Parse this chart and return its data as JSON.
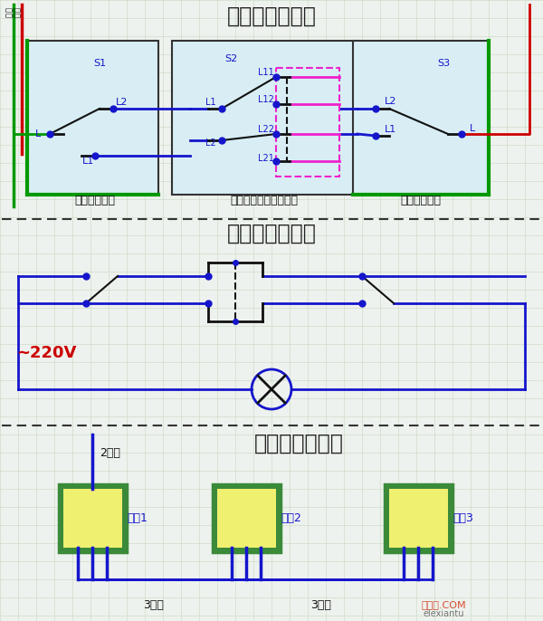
{
  "title1": "三控开关接线图",
  "title2": "三控开关原理图",
  "title3": "三控开关布线图",
  "bg_color": "#eef2ee",
  "grid_color": "#c8d8c0",
  "wire_blue": "#1515cc",
  "wire_black": "#111111",
  "wire_red": "#cc0000",
  "wire_green": "#009900",
  "wire_pink": "#ee22cc",
  "wire_cyan": "#00bbbb",
  "box_fill": "#d8eef4",
  "box_edge": "#333333",
  "sw_fill3_yellow": "#f0f070",
  "sw_fill3_green_border": "#3a8a3a",
  "label_blue": "#1515cc",
  "label_dark": "#222222",
  "label_red": "#cc0000",
  "dash_color": "#333333",
  "watermark1": "接线图.COM",
  "watermark2": "elexiantu"
}
